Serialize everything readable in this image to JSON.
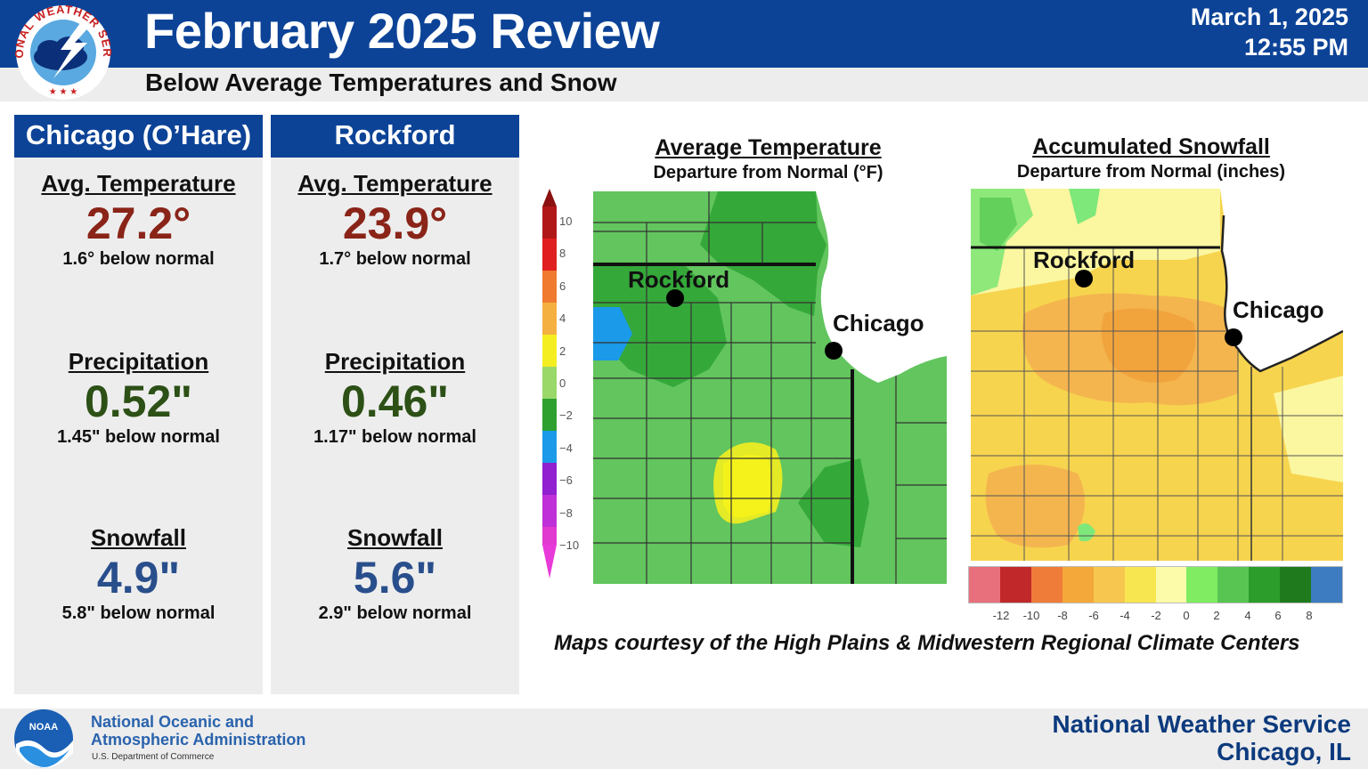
{
  "header": {
    "title": "February 2025 Review",
    "subtitle": "Below Average Temperatures and Snow",
    "date": "March 1, 2025",
    "time": "12:55 PM",
    "logo_text": "NATIONAL WEATHER SERVICE"
  },
  "stations": [
    {
      "name": "Chicago (O’Hare)",
      "temperature": {
        "label": "Avg. Temperature",
        "value": "27.2°",
        "note": "1.6° below normal"
      },
      "precipitation": {
        "label": "Precipitation",
        "value": "0.52\"",
        "note": "1.45\" below normal"
      },
      "snowfall": {
        "label": "Snowfall",
        "value": "4.9\"",
        "note": "5.8\" below normal"
      }
    },
    {
      "name": "Rockford",
      "temperature": {
        "label": "Avg. Temperature",
        "value": "23.9°",
        "note": "1.7° below normal"
      },
      "precipitation": {
        "label": "Precipitation",
        "value": "0.46\"",
        "note": "1.17\" below normal"
      },
      "snowfall": {
        "label": "Snowfall",
        "value": "5.6\"",
        "note": "2.9\" below normal"
      }
    }
  ],
  "maps": {
    "temperature": {
      "title": "Average Temperature",
      "subtitle": "Departure from Normal (°F)",
      "legend_ticks": [
        "10",
        "8",
        "6",
        "4",
        "2",
        "0",
        "−2",
        "−4",
        "−6",
        "−8",
        "−10"
      ],
      "cities": [
        "Rockford",
        "Chicago"
      ]
    },
    "snowfall": {
      "title": "Accumulated Snowfall",
      "subtitle": "Departure from Normal (inches)",
      "legend_ticks": [
        "-12",
        "-10",
        "-8",
        "-6",
        "-4",
        "-2",
        "0",
        "2",
        "4",
        "6",
        "8"
      ],
      "legend_colors": [
        "#e8707c",
        "#c0282a",
        "#f07c3a",
        "#f4a83a",
        "#f7c64e",
        "#f8e650",
        "#fbfbaa",
        "#7fec62",
        "#58c552",
        "#2c9d2b",
        "#1f7a1d",
        "#3d7cc0"
      ],
      "cities": [
        "Rockford",
        "Chicago"
      ]
    },
    "credit": "Maps courtesy of the High Plains & Midwestern Regional Climate Centers"
  },
  "footer": {
    "noaa_line1": "National Oceanic and",
    "noaa_line2": "Atmospheric Administration",
    "noaa_line3": "U.S. Department of Commerce",
    "noaa_logo_text": "NOAA",
    "nws_name": "National Weather Service",
    "nws_location": "Chicago, IL"
  },
  "colors": {
    "brand_blue": "#0c4397",
    "temperature_value": "#8a2418",
    "precipitation_value": "#2c5016",
    "snowfall_value": "#294e8c"
  }
}
